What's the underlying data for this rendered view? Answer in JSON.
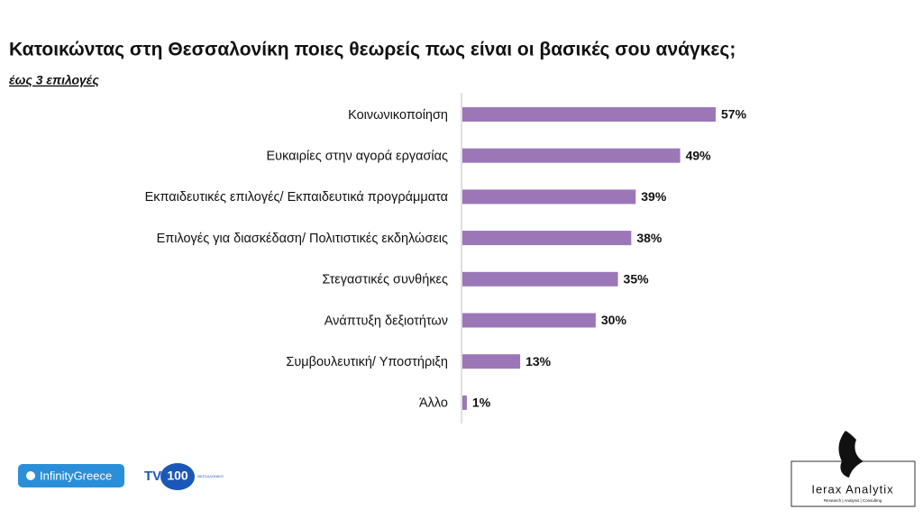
{
  "chart_data": {
    "type": "hbar",
    "title": "Κατοικώντας στη Θεσσαλονίκη ποιες θεωρείς πως είναι οι βασικές σου ανάγκες;",
    "subtitle": "έως 3 επιλογές",
    "categories": [
      "Κοινωνικοποίηση",
      "Ευκαιρίες στην αγορά εργασίας",
      "Εκπαιδευτικές επιλογές/ Εκπαιδευτικά προγράμματα",
      "Επιλογές για διασκέδαση/ Πολιτιστικές εκδηλώσεις",
      "Στεγαστικές συνθήκες",
      "Ανάπτυξη δεξιοτήτων",
      "Συμβουλευτική/ Υποστήριξη",
      "Άλλο"
    ],
    "values": [
      57,
      49,
      39,
      38,
      35,
      30,
      13,
      1
    ],
    "value_labels": [
      "57%",
      "49%",
      "39%",
      "38%",
      "35%",
      "30%",
      "13%",
      "1%"
    ],
    "color": "#9b77b8"
  },
  "footer": {
    "logo_1": "InfinityGreece",
    "logo_2": "TV",
    "logo_2_num": "100",
    "logo_2_sub": "ΘΕΣΣΑΛΟΝΙΚΗ",
    "logo_3": "Ierax Analytix",
    "logo_3_sub": "Research | Analysis | Consulting"
  }
}
